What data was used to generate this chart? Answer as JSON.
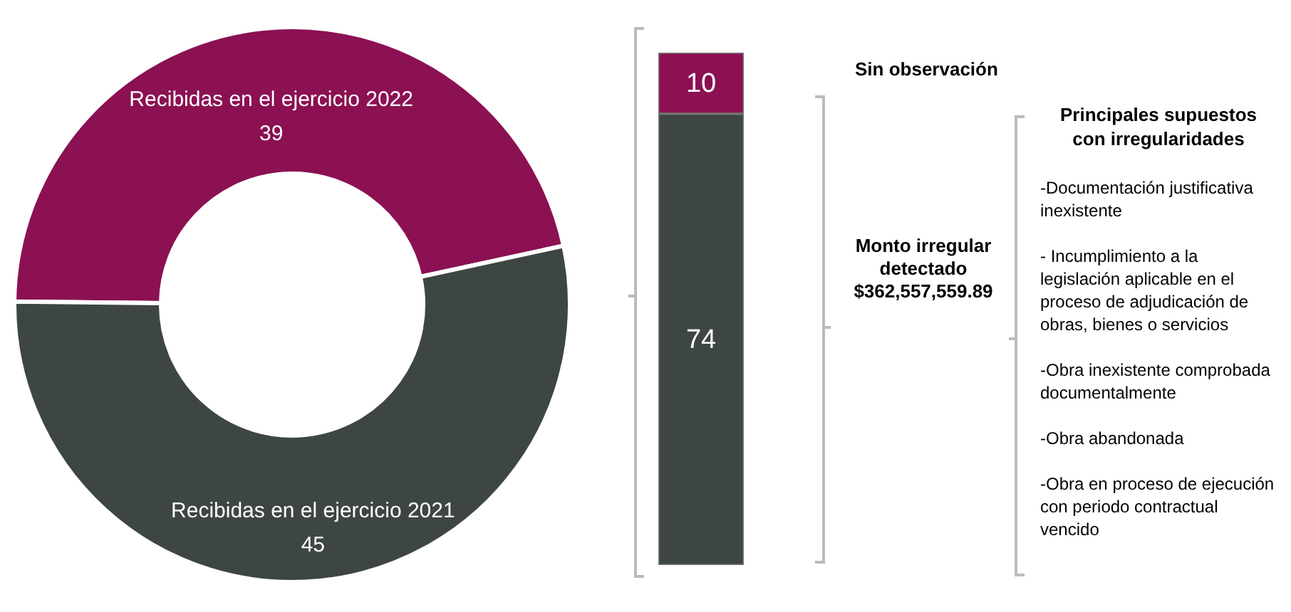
{
  "chart_data": [
    {
      "type": "donut",
      "categories": [
        "Recibidas en el ejercicio 2022",
        "Recibidas en el ejercicio 2021"
      ],
      "values": [
        39,
        45
      ],
      "colors": [
        "#8b1152",
        "#3e4643"
      ],
      "data_labels": true
    },
    {
      "type": "bar",
      "stacked": true,
      "categories": [
        null
      ],
      "series": [
        {
          "color": "#3e4643",
          "values": [
            74
          ]
        },
        {
          "color": "#8b1152",
          "values": [
            10
          ]
        }
      ],
      "data_labels": true,
      "annotations": [
        "Sin observación",
        "Monto irregular detectado $362,557,559.89"
      ]
    },
    {
      "type": "other",
      "title": "Principales supuestos con irregularidades",
      "annotations": [
        "-Documentación justificativa inexistente",
        "- Incumplimiento a la legislación aplicable en el proceso de adjudicación de obras, bienes o servicios",
        "-Obra inexistente comprobada documentalmente",
        "-Obra abandonada",
        "-Obra en proceso de ejecución con periodo contractual vencido"
      ]
    }
  ]
}
